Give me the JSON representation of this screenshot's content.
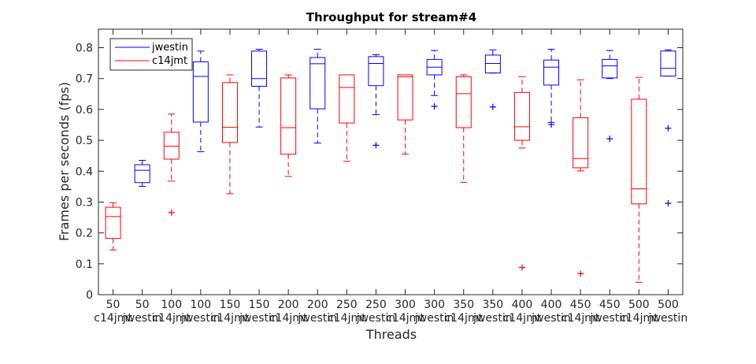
{
  "chart_data": {
    "type": "box",
    "title": "Throughput for stream#4",
    "xlabel": "Threads",
    "ylabel": "Frames per seconds (fps)",
    "ylim": [
      0,
      0.86
    ],
    "yticks": [
      0,
      0.1,
      0.2,
      0.3,
      0.4,
      0.5,
      0.6,
      0.7,
      0.8
    ],
    "grid": false,
    "legend_position": "top-left",
    "legend": [
      {
        "name": "jwestin",
        "color": "#0000ff"
      },
      {
        "name": "c14jmt",
        "color": "#ff0000"
      }
    ],
    "boxes": [
      {
        "threads": "50",
        "series": "c14jmt",
        "whisker_low": 0.145,
        "q1": 0.182,
        "median": 0.253,
        "q3": 0.283,
        "whisker_high": 0.298,
        "outliers": []
      },
      {
        "threads": "50",
        "series": "jwestin",
        "whisker_low": 0.351,
        "q1": 0.363,
        "median": 0.403,
        "q3": 0.421,
        "whisker_high": 0.435,
        "outliers": []
      },
      {
        "threads": "100",
        "series": "c14jmt",
        "whisker_low": 0.368,
        "q1": 0.439,
        "median": 0.481,
        "q3": 0.526,
        "whisker_high": 0.585,
        "outliers": [
          0.266
        ]
      },
      {
        "threads": "100",
        "series": "jwestin",
        "whisker_low": 0.463,
        "q1": 0.559,
        "median": 0.707,
        "q3": 0.754,
        "whisker_high": 0.789,
        "outliers": []
      },
      {
        "threads": "150",
        "series": "c14jmt",
        "whisker_low": 0.327,
        "q1": 0.493,
        "median": 0.542,
        "q3": 0.687,
        "whisker_high": 0.712,
        "outliers": []
      },
      {
        "threads": "150",
        "series": "jwestin",
        "whisker_low": 0.543,
        "q1": 0.675,
        "median": 0.7,
        "q3": 0.789,
        "whisker_high": 0.795,
        "outliers": []
      },
      {
        "threads": "200",
        "series": "c14jmt",
        "whisker_low": 0.383,
        "q1": 0.455,
        "median": 0.541,
        "q3": 0.702,
        "whisker_high": 0.712,
        "outliers": []
      },
      {
        "threads": "200",
        "series": "jwestin",
        "whisker_low": 0.491,
        "q1": 0.602,
        "median": 0.748,
        "q3": 0.768,
        "whisker_high": 0.795,
        "outliers": []
      },
      {
        "threads": "250",
        "series": "c14jmt",
        "whisker_low": 0.432,
        "q1": 0.556,
        "median": 0.671,
        "q3": 0.712,
        "whisker_high": 0.712,
        "outliers": []
      },
      {
        "threads": "250",
        "series": "jwestin",
        "whisker_low": 0.583,
        "q1": 0.677,
        "median": 0.749,
        "q3": 0.771,
        "whisker_high": 0.777,
        "outliers": [
          0.484
        ]
      },
      {
        "threads": "300",
        "series": "c14jmt",
        "whisker_low": 0.455,
        "q1": 0.566,
        "median": 0.706,
        "q3": 0.712,
        "whisker_high": 0.712,
        "outliers": []
      },
      {
        "threads": "300",
        "series": "jwestin",
        "whisker_low": 0.645,
        "q1": 0.712,
        "median": 0.737,
        "q3": 0.762,
        "whisker_high": 0.791,
        "outliers": [
          0.61
        ]
      },
      {
        "threads": "350",
        "series": "c14jmt",
        "whisker_low": 0.364,
        "q1": 0.541,
        "median": 0.651,
        "q3": 0.706,
        "whisker_high": 0.712,
        "outliers": []
      },
      {
        "threads": "350",
        "series": "jwestin",
        "whisker_low": 0.718,
        "q1": 0.718,
        "median": 0.749,
        "q3": 0.776,
        "whisker_high": 0.793,
        "outliers": [
          0.608
        ]
      },
      {
        "threads": "400",
        "series": "c14jmt",
        "whisker_low": 0.475,
        "q1": 0.5,
        "median": 0.544,
        "q3": 0.655,
        "whisker_high": 0.706,
        "outliers": [
          0.088
        ]
      },
      {
        "threads": "400",
        "series": "jwestin",
        "whisker_low": 0.558,
        "q1": 0.679,
        "median": 0.737,
        "q3": 0.76,
        "whisker_high": 0.795,
        "outliers": [
          0.551
        ]
      },
      {
        "threads": "450",
        "series": "c14jmt",
        "whisker_low": 0.401,
        "q1": 0.411,
        "median": 0.441,
        "q3": 0.573,
        "whisker_high": 0.696,
        "outliers": [
          0.068
        ]
      },
      {
        "threads": "450",
        "series": "jwestin",
        "whisker_low": 0.7,
        "q1": 0.702,
        "median": 0.741,
        "q3": 0.762,
        "whisker_high": 0.791,
        "outliers": [
          0.505
        ]
      },
      {
        "threads": "500",
        "series": "c14jmt",
        "whisker_low": 0.04,
        "q1": 0.294,
        "median": 0.343,
        "q3": 0.633,
        "whisker_high": 0.704,
        "outliers": []
      },
      {
        "threads": "500",
        "series": "jwestin",
        "whisker_low": 0.708,
        "q1": 0.708,
        "median": 0.733,
        "q3": 0.789,
        "whisker_high": 0.793,
        "outliers": [
          0.539,
          0.296
        ]
      }
    ]
  }
}
